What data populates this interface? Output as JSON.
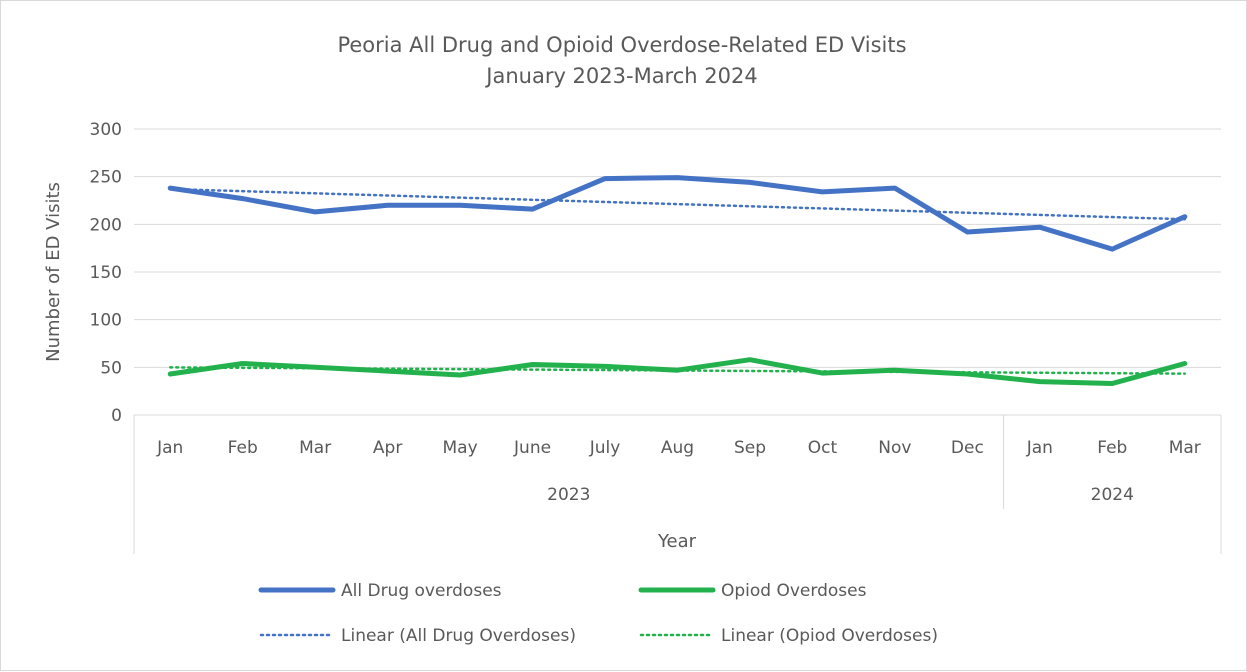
{
  "chart_data": {
    "type": "line",
    "title": "Peoria All Drug and Opioid Overdose-Related ED Visits",
    "subtitle": "January 2023-March 2024",
    "ylabel": "Number of ED Visits",
    "xlabel": "Year",
    "ylim": [
      0,
      300
    ],
    "yticks": [
      0,
      50,
      100,
      150,
      200,
      250,
      300
    ],
    "grid": true,
    "legend_position": "bottom",
    "categories": [
      "Jan",
      "Feb",
      "Mar",
      "Apr",
      "May",
      "June",
      "July",
      "Aug",
      "Sep",
      "Oct",
      "Nov",
      "Dec",
      "Jan",
      "Feb",
      "Mar"
    ],
    "groups": [
      {
        "label": "2023",
        "count": 12
      },
      {
        "label": "2024",
        "count": 3
      }
    ],
    "series": [
      {
        "name": "All Drug overdoses",
        "color": "#4472c4",
        "style": "solid",
        "values": [
          238,
          227,
          213,
          220,
          220,
          216,
          248,
          249,
          244,
          234,
          238,
          192,
          197,
          174,
          208
        ]
      },
      {
        "name": "Opiod Overdoses",
        "color": "#22b14c",
        "style": "solid",
        "values": [
          43,
          54,
          50,
          46,
          42,
          53,
          51,
          47,
          58,
          44,
          47,
          43,
          35,
          33,
          54
        ]
      }
    ],
    "trendlines": [
      {
        "name": "Linear (All Drug Overdoses)",
        "color": "#4472c4",
        "style": "dotted",
        "of_series": 0
      },
      {
        "name": "Linear (Opiod Overdoses)",
        "color": "#22b14c",
        "style": "dotted",
        "of_series": 1
      }
    ]
  }
}
